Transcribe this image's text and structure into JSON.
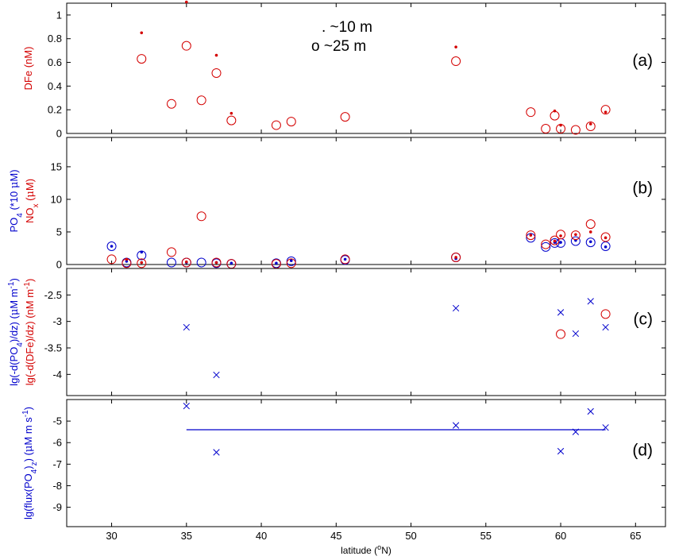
{
  "chart_data": {
    "type": "scatter",
    "xlabel_parts": [
      "latitude (",
      "o",
      "N)"
    ],
    "xlim": [
      27,
      67
    ],
    "xticks": [
      30,
      35,
      40,
      45,
      50,
      55,
      60,
      65
    ],
    "colors": {
      "red": "#d40000",
      "blue": "#0000cc",
      "axis": "#000000"
    },
    "legend_lines": [
      ". ~10 m",
      "o ~25 m"
    ],
    "panels": [
      {
        "id": "a",
        "panel_label": "(a)",
        "ylim": [
          0,
          1.1
        ],
        "yticks": [
          0,
          0.2,
          0.4,
          0.6,
          0.8,
          1
        ],
        "ylabel_lines": [
          {
            "color": "red",
            "parts": [
              {
                "t": "DFe (nM)"
              }
            ]
          }
        ],
        "series": [
          {
            "marker": "dot",
            "color": "red",
            "points": [
              [
                32,
                0.85
              ],
              [
                35,
                1.11
              ],
              [
                37,
                0.66
              ],
              [
                38,
                0.17
              ],
              [
                53,
                0.73
              ],
              [
                59.6,
                0.19
              ],
              [
                60,
                0.07
              ],
              [
                62,
                0.08
              ],
              [
                63,
                0.18
              ]
            ]
          },
          {
            "marker": "circle",
            "color": "red",
            "points": [
              [
                32,
                0.63
              ],
              [
                34,
                0.25
              ],
              [
                35,
                0.74
              ],
              [
                36,
                0.28
              ],
              [
                37,
                0.51
              ],
              [
                38,
                0.11
              ],
              [
                41,
                0.07
              ],
              [
                42,
                0.1
              ],
              [
                45.6,
                0.14
              ],
              [
                53,
                0.61
              ],
              [
                58,
                0.18
              ],
              [
                59,
                0.04
              ],
              [
                59.6,
                0.15
              ],
              [
                60,
                0.04
              ],
              [
                61,
                0.03
              ],
              [
                62,
                0.06
              ],
              [
                63,
                0.2
              ]
            ]
          }
        ]
      },
      {
        "id": "b",
        "panel_label": "(b)",
        "ylim": [
          0,
          19.5
        ],
        "yticks": [
          0,
          5,
          10,
          15
        ],
        "ylabel_lines": [
          {
            "color": "blue",
            "parts": [
              {
                "t": "PO"
              },
              {
                "t": "4",
                "sub": true
              },
              {
                "t": " (*10 "
              },
              {
                "t": "μ",
                "greek": true
              },
              {
                "t": "M)"
              }
            ]
          },
          {
            "color": "red",
            "parts": [
              {
                "t": "NO"
              },
              {
                "t": "x",
                "sub": true
              },
              {
                "t": " ("
              },
              {
                "t": "μ",
                "greek": true
              },
              {
                "t": "M)"
              }
            ]
          }
        ],
        "series": [
          {
            "marker": "dot",
            "color": "blue",
            "points": [
              [
                30,
                2.8
              ],
              [
                31,
                0.5
              ],
              [
                32,
                1.9
              ],
              [
                35,
                0.3
              ],
              [
                37,
                0.3
              ],
              [
                38,
                0.2
              ],
              [
                41,
                0.2
              ],
              [
                42,
                0.6
              ],
              [
                45.6,
                0.8
              ],
              [
                53,
                0.9
              ],
              [
                59.6,
                3.4
              ],
              [
                60,
                3.4
              ],
              [
                61,
                3.7
              ],
              [
                62,
                3.5
              ],
              [
                63,
                2.7
              ]
            ]
          },
          {
            "marker": "circle",
            "color": "blue",
            "points": [
              [
                30,
                2.8
              ],
              [
                31,
                0.3
              ],
              [
                32,
                1.4
              ],
              [
                34,
                0.3
              ],
              [
                35,
                0.3
              ],
              [
                36,
                0.3
              ],
              [
                37,
                0.2
              ],
              [
                38,
                0.1
              ],
              [
                41,
                0.2
              ],
              [
                42,
                0.5
              ],
              [
                45.6,
                0.7
              ],
              [
                53,
                1.1
              ],
              [
                58,
                4.1
              ],
              [
                59,
                2.7
              ],
              [
                59.6,
                3.3
              ],
              [
                60,
                3.3
              ],
              [
                61,
                3.6
              ],
              [
                62,
                3.4
              ],
              [
                63,
                2.8
              ]
            ]
          },
          {
            "marker": "dot",
            "color": "red",
            "points": [
              [
                31,
                0.8
              ],
              [
                32,
                0.3
              ],
              [
                35,
                0.4
              ],
              [
                37,
                0.3
              ],
              [
                53,
                1.1
              ],
              [
                58,
                4.5
              ],
              [
                59.6,
                3.6
              ],
              [
                60,
                4.4
              ],
              [
                61,
                4.6
              ],
              [
                62,
                5.0
              ],
              [
                63,
                4.1
              ]
            ]
          },
          {
            "marker": "circle",
            "color": "red",
            "points": [
              [
                30,
                0.8
              ],
              [
                31,
                0.2
              ],
              [
                32,
                0.2
              ],
              [
                34,
                1.9
              ],
              [
                35,
                0.3
              ],
              [
                36,
                7.4
              ],
              [
                37,
                0.3
              ],
              [
                38,
                0.1
              ],
              [
                41,
                0.1
              ],
              [
                42,
                0.2
              ],
              [
                45.6,
                0.8
              ],
              [
                53,
                1.1
              ],
              [
                58,
                4.5
              ],
              [
                59,
                3.1
              ],
              [
                59.6,
                3.7
              ],
              [
                60,
                4.6
              ],
              [
                61,
                4.5
              ],
              [
                62,
                6.2
              ],
              [
                63,
                4.2
              ]
            ]
          }
        ]
      },
      {
        "id": "c",
        "panel_label": "(c)",
        "ylim": [
          -4.4,
          -2.0
        ],
        "yticks": [
          -2.5,
          -3,
          -3.5,
          -4
        ],
        "ylabel_lines": [
          {
            "color": "blue",
            "parts": [
              {
                "t": "lg(-d(PO"
              },
              {
                "t": "4",
                "sub": true
              },
              {
                "t": ")/dz) ("
              },
              {
                "t": "μ",
                "greek": true
              },
              {
                "t": "M m"
              },
              {
                "t": "-1",
                "sup": true
              },
              {
                "t": ")"
              }
            ]
          },
          {
            "color": "red",
            "parts": [
              {
                "t": "lg(-d(DFe)/dz) (nM m"
              },
              {
                "t": "-1",
                "sup": true
              },
              {
                "t": ")"
              }
            ]
          }
        ],
        "series": [
          {
            "marker": "x",
            "color": "blue",
            "points": [
              [
                35,
                -3.11
              ],
              [
                37,
                -4.01
              ],
              [
                53,
                -2.75
              ],
              [
                60,
                -2.83
              ],
              [
                61,
                -3.23
              ],
              [
                62,
                -2.62
              ],
              [
                63,
                -3.11
              ]
            ]
          },
          {
            "marker": "circle",
            "color": "red",
            "points": [
              [
                60,
                -3.24
              ],
              [
                63,
                -2.86
              ]
            ]
          }
        ]
      },
      {
        "id": "d",
        "panel_label": "(d)",
        "ylim": [
          -9.9,
          -4.0
        ],
        "yticks": [
          -5,
          -6,
          -7,
          -8,
          -9
        ],
        "ylabel_lines": [
          {
            "color": "blue",
            "parts": [
              {
                "t": "lg(flux(PO"
              },
              {
                "t": "4",
                "sub": true
              },
              {
                "t": ")"
              },
              {
                "t": "z",
                "sub": true
              },
              {
                "t": ") ("
              },
              {
                "t": "μ",
                "greek": true
              },
              {
                "t": "M m s"
              },
              {
                "t": "-1",
                "sup": true
              },
              {
                "t": ")"
              }
            ]
          }
        ],
        "series": [
          {
            "marker": "x",
            "color": "blue",
            "points": [
              [
                35,
                -4.3
              ],
              [
                37,
                -6.45
              ],
              [
                53,
                -5.2
              ],
              [
                60,
                -6.4
              ],
              [
                61,
                -5.5
              ],
              [
                62,
                -4.55
              ],
              [
                63,
                -5.3
              ]
            ]
          },
          {
            "marker": "line",
            "color": "blue",
            "points": [
              [
                35,
                -5.4
              ],
              [
                63,
                -5.4
              ]
            ]
          }
        ]
      }
    ]
  }
}
